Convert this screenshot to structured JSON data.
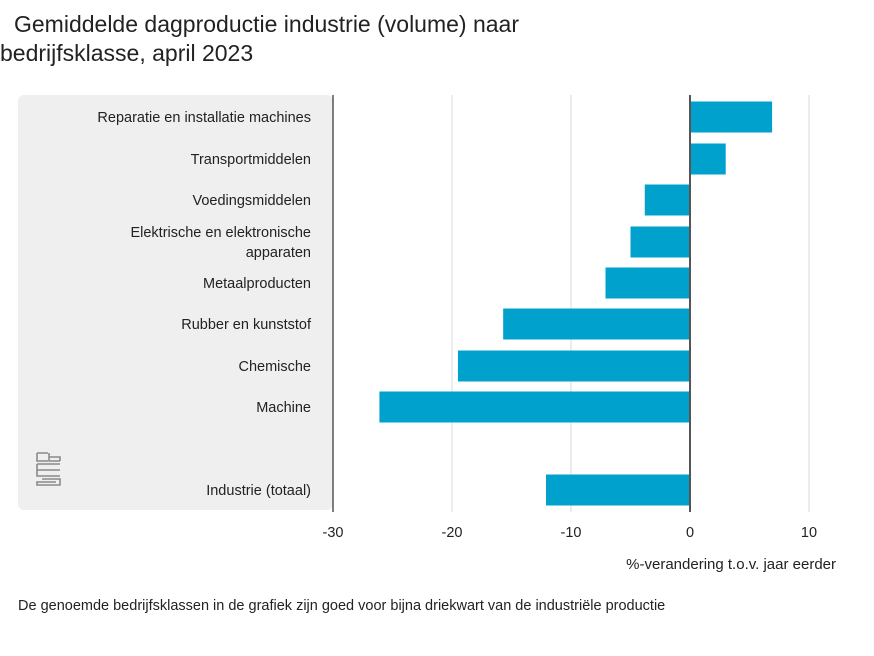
{
  "title_line1": "Gemiddelde dagproductie industrie (volume) naar",
  "title_line2": "bedrijfsklasse, april 2023",
  "footnote": "De genoemde bedrijfsklassen in de grafiek zijn goed voor bijna driekwart van de industriële productie",
  "logo": "cbs-logo",
  "colors": {
    "bar": "#00a1cd",
    "panel": "#efefef",
    "grid": "#d9d9d9",
    "axis": "#555555"
  },
  "chart_data": {
    "type": "bar",
    "orientation": "horizontal",
    "title": "Gemiddelde dagproductie industrie (volume) naar bedrijfsklasse, april 2023",
    "xlabel": "%-verandering t.o.v. jaar eerder",
    "ylabel": "",
    "xlim": [
      -30,
      10
    ],
    "xticks": [
      -30,
      -20,
      -10,
      0,
      10
    ],
    "grid": true,
    "categories": [
      [
        "Reparatie en installatie machines"
      ],
      [
        "Transportmiddelen"
      ],
      [
        "Voedingsmiddelen"
      ],
      [
        "Elektrische en elektronische",
        "apparaten"
      ],
      [
        "Metaalproducten"
      ],
      [
        "Rubber en kunststof"
      ],
      [
        "Chemische"
      ],
      [
        "Machine"
      ],
      [
        "Industrie (totaal)"
      ]
    ],
    "values": [
      6.9,
      3.0,
      -3.8,
      -5.0,
      -7.1,
      -15.7,
      -19.5,
      -26.1,
      -12.1
    ]
  }
}
